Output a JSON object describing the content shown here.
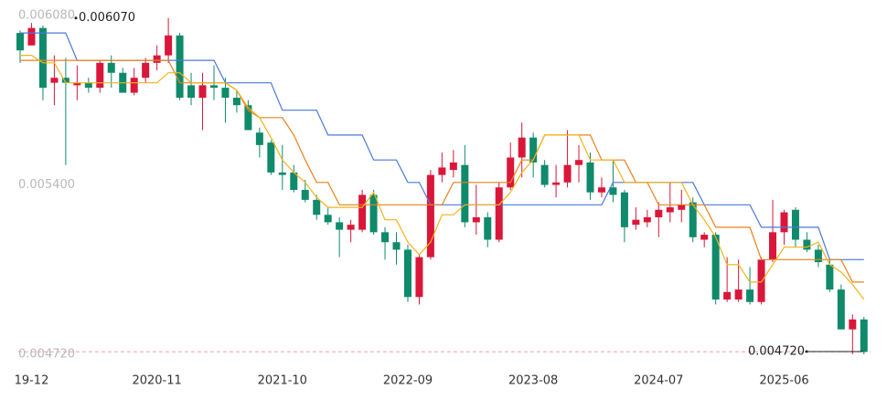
{
  "chart_data": {
    "type": "candlestick",
    "categories": [
      null,
      "19-12",
      null,
      null,
      null,
      null,
      null,
      null,
      null,
      null,
      null,
      null,
      "2020-11",
      null,
      null,
      null,
      null,
      null,
      null,
      null,
      null,
      null,
      null,
      "2021-10",
      null,
      null,
      null,
      null,
      null,
      null,
      null,
      null,
      null,
      null,
      "2022-09",
      null,
      null,
      null,
      null,
      null,
      null,
      null,
      null,
      null,
      null,
      "2023-08",
      null,
      null,
      null,
      null,
      null,
      null,
      null,
      null,
      null,
      null,
      "2024-07",
      null,
      null,
      null,
      null,
      null,
      null,
      null,
      null,
      null,
      null,
      "2025-06",
      null,
      null,
      null,
      null,
      null,
      null,
      null
    ],
    "ohlc": [
      [
        0.00601,
        0.00602,
        0.00589,
        0.00594
      ],
      [
        0.00596,
        0.00605,
        0.00596,
        0.00603
      ],
      [
        0.00603,
        0.00604,
        0.00574,
        0.00579
      ],
      [
        0.00581,
        0.00592,
        0.00572,
        0.00583
      ],
      [
        0.00583,
        0.00591,
        0.00548,
        0.00581
      ],
      [
        0.0058,
        0.00588,
        0.00574,
        0.00581
      ],
      [
        0.00581,
        0.00583,
        0.00577,
        0.00579
      ],
      [
        0.00579,
        0.0059,
        0.00577,
        0.00589
      ],
      [
        0.00589,
        0.00592,
        0.00579,
        0.00585
      ],
      [
        0.00585,
        0.00587,
        0.00577,
        0.00577
      ],
      [
        0.00577,
        0.00587,
        0.00576,
        0.00583
      ],
      [
        0.00583,
        0.00591,
        0.00581,
        0.00589
      ],
      [
        0.00589,
        0.00596,
        0.00586,
        0.00592
      ],
      [
        0.00592,
        0.00607,
        0.00589,
        0.006
      ],
      [
        0.006,
        0.00601,
        0.00574,
        0.00575
      ],
      [
        0.0058,
        0.00585,
        0.00572,
        0.00575
      ],
      [
        0.00575,
        0.00585,
        0.00562,
        0.0058
      ],
      [
        0.0058,
        0.00588,
        0.00574,
        0.00579
      ],
      [
        0.00579,
        0.00583,
        0.00565,
        0.00575
      ],
      [
        0.00575,
        0.00578,
        0.00569,
        0.00572
      ],
      [
        0.00572,
        0.00574,
        0.00562,
        0.00562
      ],
      [
        0.00561,
        0.00563,
        0.00551,
        0.00556
      ],
      [
        0.00557,
        0.00558,
        0.00544,
        0.00545
      ],
      [
        0.00545,
        0.00556,
        0.00538,
        0.00544
      ],
      [
        0.00545,
        0.00548,
        0.00537,
        0.00538
      ],
      [
        0.00538,
        0.00542,
        0.00533,
        0.00534
      ],
      [
        0.00534,
        0.00536,
        0.00526,
        0.00528
      ],
      [
        0.00528,
        0.00531,
        0.00524,
        0.00525
      ],
      [
        0.00525,
        0.00527,
        0.00511,
        0.00522
      ],
      [
        0.00522,
        0.00526,
        0.00517,
        0.00524
      ],
      [
        0.00522,
        0.00538,
        0.00521,
        0.00536
      ],
      [
        0.00536,
        0.00538,
        0.0052,
        0.00521
      ],
      [
        0.00521,
        0.00523,
        0.0051,
        0.00517
      ],
      [
        0.00517,
        0.00521,
        0.00508,
        0.00514
      ],
      [
        0.00514,
        0.00516,
        0.00493,
        0.00495
      ],
      [
        0.00495,
        0.00512,
        0.00492,
        0.00511
      ],
      [
        0.00511,
        0.00546,
        0.0051,
        0.00544
      ],
      [
        0.00544,
        0.00553,
        0.00541,
        0.00547
      ],
      [
        0.00546,
        0.00554,
        0.00543,
        0.00549
      ],
      [
        0.00548,
        0.00556,
        0.00523,
        0.00525
      ],
      [
        0.00525,
        0.0054,
        0.0052,
        0.00527
      ],
      [
        0.00527,
        0.00529,
        0.00515,
        0.00518
      ],
      [
        0.00518,
        0.00541,
        0.00517,
        0.00539
      ],
      [
        0.00539,
        0.00557,
        0.00538,
        0.00551
      ],
      [
        0.00551,
        0.00565,
        0.00543,
        0.00559
      ],
      [
        0.00559,
        0.00561,
        0.00543,
        0.00549
      ],
      [
        0.00548,
        0.0055,
        0.00539,
        0.0054
      ],
      [
        0.0054,
        0.00548,
        0.00535,
        0.00541
      ],
      [
        0.00541,
        0.00562,
        0.00539,
        0.00548
      ],
      [
        0.00548,
        0.00556,
        0.00541,
        0.0055
      ],
      [
        0.00549,
        0.00553,
        0.00534,
        0.00537
      ],
      [
        0.00537,
        0.00543,
        0.00535,
        0.00539
      ],
      [
        0.00539,
        0.0055,
        0.00533,
        0.00536
      ],
      [
        0.00537,
        0.00538,
        0.00517,
        0.00523
      ],
      [
        0.00524,
        0.00531,
        0.00522,
        0.00526
      ],
      [
        0.00525,
        0.0053,
        0.00523,
        0.00527
      ],
      [
        0.00527,
        0.00533,
        0.00519,
        0.0053
      ],
      [
        0.00529,
        0.00541,
        0.00525,
        0.00531
      ],
      [
        0.0053,
        0.00538,
        0.00525,
        0.00532
      ],
      [
        0.00533,
        0.00535,
        0.00517,
        0.00519
      ],
      [
        0.00518,
        0.00521,
        0.00515,
        0.0052
      ],
      [
        0.0052,
        0.00521,
        0.00492,
        0.00494
      ],
      [
        0.00494,
        0.00511,
        0.00493,
        0.00497
      ],
      [
        0.00494,
        0.0051,
        0.00493,
        0.00498
      ],
      [
        0.00498,
        0.00507,
        0.00492,
        0.00493
      ],
      [
        0.00493,
        0.00511,
        0.00492,
        0.0051
      ],
      [
        0.0051,
        0.00534,
        0.00509,
        0.00521
      ],
      [
        0.00521,
        0.0053,
        0.00516,
        0.00529
      ],
      [
        0.0053,
        0.00531,
        0.00515,
        0.00518
      ],
      [
        0.00518,
        0.00521,
        0.00513,
        0.00514
      ],
      [
        0.00514,
        0.00516,
        0.00507,
        0.00509
      ],
      [
        0.00508,
        0.0051,
        0.00497,
        0.00498
      ],
      [
        0.00498,
        0.005,
        0.00482,
        0.00482
      ],
      [
        0.00482,
        0.00488,
        0.00472,
        0.00486
      ],
      [
        0.00486,
        0.00487,
        0.00472,
        0.00473
      ]
    ],
    "up_color": "#d9173a",
    "down_color": "#0f8a6b",
    "lines": [
      {
        "color": "#4a78d8",
        "values": [
          0.00601,
          0.00601,
          0.00601,
          0.00601,
          0.00601,
          0.0059,
          0.0059,
          0.0059,
          0.0059,
          0.0059,
          0.0059,
          0.0059,
          0.0059,
          0.0059,
          0.0059,
          0.0059,
          0.0059,
          0.0059,
          0.00581,
          0.00581,
          0.00581,
          0.00581,
          0.00581,
          0.0057,
          0.0057,
          0.0057,
          0.0057,
          0.0056,
          0.0056,
          0.0056,
          0.0056,
          0.0055,
          0.0055,
          0.0055,
          0.00541,
          0.00541,
          0.00532,
          0.00532,
          0.00532,
          0.00532,
          0.00532,
          0.00532,
          0.00532,
          0.00532,
          0.00532,
          0.00532,
          0.00532,
          0.00532,
          0.00532,
          0.00532,
          0.00532,
          0.00532,
          0.00541,
          0.00541,
          0.00541,
          0.00541,
          0.00541,
          0.00541,
          0.00541,
          0.00541,
          0.00532,
          0.00532,
          0.00532,
          0.00532,
          0.00532,
          0.00523,
          0.00523,
          0.00523,
          0.00523,
          0.00523,
          0.00523,
          0.0051,
          0.0051,
          0.0051,
          0.0051
        ]
      },
      {
        "color": "#e8801c",
        "values": [
          0.0059,
          0.0059,
          0.0059,
          0.0059,
          0.0059,
          0.0059,
          0.0059,
          0.0059,
          0.0059,
          0.0059,
          0.0059,
          0.0059,
          0.0059,
          0.0059,
          0.00581,
          0.00581,
          0.00581,
          0.00581,
          0.00581,
          0.00578,
          0.0057,
          0.00567,
          0.00567,
          0.00567,
          0.0056,
          0.0055,
          0.00541,
          0.00541,
          0.00532,
          0.00532,
          0.00532,
          0.00532,
          0.00532,
          0.00532,
          0.00532,
          0.00532,
          0.00532,
          0.00532,
          0.00541,
          0.00541,
          0.00541,
          0.00541,
          0.00541,
          0.00541,
          0.0055,
          0.0055,
          0.0056,
          0.0056,
          0.0056,
          0.0056,
          0.0056,
          0.0055,
          0.0055,
          0.0055,
          0.00541,
          0.00541,
          0.00532,
          0.00532,
          0.00532,
          0.00532,
          0.00532,
          0.00523,
          0.00523,
          0.00523,
          0.00523,
          0.0051,
          0.0051,
          0.0051,
          0.0051,
          0.0051,
          0.0051,
          0.0051,
          0.0051,
          0.00501,
          0.00501
        ]
      },
      {
        "color": "#f2b318",
        "values": [
          0.00592,
          0.00592,
          0.00589,
          0.00589,
          0.00581,
          0.00581,
          0.00581,
          0.00581,
          0.00581,
          0.00581,
          0.00581,
          0.00581,
          0.00581,
          0.00585,
          0.00585,
          0.00581,
          0.00581,
          0.00581,
          0.00581,
          0.00578,
          0.00571,
          0.00567,
          0.00559,
          0.0055,
          0.00545,
          0.00541,
          0.00535,
          0.00531,
          0.00531,
          0.00531,
          0.00531,
          0.00537,
          0.00526,
          0.00526,
          0.00517,
          0.00512,
          0.00517,
          0.00528,
          0.00528,
          0.00532,
          0.00532,
          0.00532,
          0.00532,
          0.00537,
          0.00545,
          0.0055,
          0.0056,
          0.0056,
          0.0056,
          0.0056,
          0.0055,
          0.0055,
          0.0055,
          0.00541,
          0.00541,
          0.00541,
          0.00541,
          0.00541,
          0.00541,
          0.00532,
          0.00526,
          0.00519,
          0.00508,
          0.00508,
          0.00501,
          0.00501,
          0.00508,
          0.00515,
          0.00515,
          0.00515,
          0.00517,
          0.00508,
          0.00505,
          0.005,
          0.00494
        ]
      }
    ],
    "ylim": [
      0.00472,
      0.00608
    ],
    "yticks": [
      {
        "value": 0.00608,
        "label": "0.006080"
      },
      {
        "value": 0.0054,
        "label": "0.005400"
      },
      {
        "value": 0.00472,
        "label": "0.004720"
      }
    ],
    "max_marker": {
      "value": 0.00607,
      "label": "0.006070"
    },
    "min_marker": {
      "value": 0.00472,
      "label": "0.004720"
    }
  }
}
